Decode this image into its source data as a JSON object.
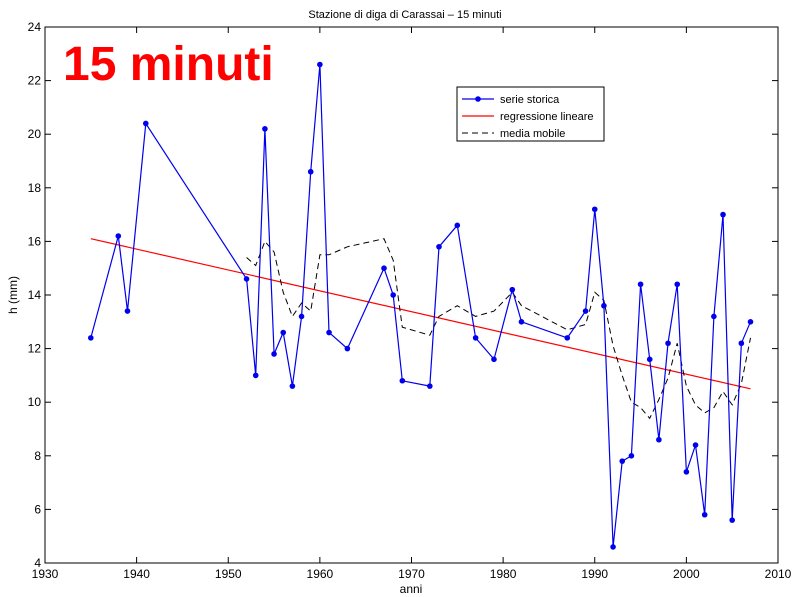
{
  "overlay_label": "15 minuti",
  "colors": {
    "overlay": "#ff0000",
    "series": "#0000ee",
    "regression": "#ff0000",
    "moving_average": "#000000",
    "axis": "#000000"
  },
  "chart_data": {
    "type": "line",
    "title": "Stazione di diga di Carassai – 15 minuti",
    "xlabel": "anni",
    "ylabel": "h (mm)",
    "xlim": [
      1930,
      2010
    ],
    "ylim": [
      4,
      24
    ],
    "xticks": [
      1930,
      1940,
      1950,
      1960,
      1970,
      1980,
      1990,
      2000,
      2010
    ],
    "yticks": [
      4,
      6,
      8,
      10,
      12,
      14,
      16,
      18,
      20,
      22,
      24
    ],
    "xtick_labels": [
      "1930",
      "1940",
      "1950",
      "1960",
      "1970",
      "1980",
      "1990",
      "2000",
      "2010"
    ],
    "ytick_labels": [
      "4",
      "6",
      "8",
      "10",
      "12",
      "14",
      "16",
      "18",
      "20",
      "22",
      "24"
    ],
    "grid": false,
    "legend_position": "top-right",
    "series": [
      {
        "name": "serie storica",
        "style": "line-markers",
        "x": [
          1935,
          1938,
          1939,
          1941,
          1952,
          1953,
          1954,
          1955,
          1956,
          1957,
          1958,
          1959,
          1960,
          1961,
          1963,
          1967,
          1968,
          1969,
          1972,
          1973,
          1975,
          1977,
          1979,
          1981,
          1982,
          1987,
          1989,
          1990,
          1991,
          1992,
          1993,
          1994,
          1995,
          1996,
          1997,
          1998,
          1999,
          2000,
          2001,
          2002,
          2003,
          2004,
          2005,
          2006,
          2007
        ],
        "y": [
          12.4,
          16.2,
          13.4,
          20.4,
          14.6,
          11.0,
          20.2,
          11.8,
          12.6,
          10.6,
          13.2,
          18.6,
          22.6,
          12.6,
          12.0,
          15.0,
          14.0,
          10.8,
          10.6,
          15.8,
          16.6,
          12.4,
          11.6,
          14.2,
          13.0,
          12.4,
          13.4,
          17.2,
          13.6,
          4.6,
          7.8,
          8.0,
          14.4,
          11.6,
          8.6,
          12.2,
          14.4,
          7.4,
          8.4,
          5.8,
          13.2,
          17.0,
          5.6,
          12.2,
          13.0
        ]
      },
      {
        "name": "regressione lineare",
        "style": "line",
        "x": [
          1935,
          2007
        ],
        "y": [
          16.1,
          10.5
        ]
      },
      {
        "name": "media mobile",
        "style": "dashed",
        "x": [
          1952,
          1953,
          1954,
          1955,
          1956,
          1957,
          1958,
          1959,
          1960,
          1961,
          1963,
          1967,
          1968,
          1969,
          1972,
          1973,
          1975,
          1977,
          1979,
          1981,
          1982,
          1987,
          1989,
          1990,
          1991,
          1992,
          1993,
          1994,
          1995,
          1996,
          1997,
          1998,
          1999,
          2000,
          2001,
          2002,
          2003,
          2004,
          2005,
          2006,
          2007
        ],
        "y": [
          15.4,
          15.1,
          16.0,
          15.6,
          14.1,
          13.2,
          13.7,
          13.4,
          15.5,
          15.5,
          15.8,
          16.1,
          15.3,
          12.8,
          12.5,
          13.2,
          13.6,
          13.2,
          13.4,
          14.1,
          13.6,
          12.7,
          12.9,
          14.1,
          13.8,
          12.1,
          11.0,
          10.0,
          9.8,
          9.4,
          10.1,
          10.9,
          12.2,
          10.6,
          9.9,
          9.6,
          9.8,
          10.4,
          9.9,
          10.7,
          12.4
        ]
      }
    ]
  }
}
